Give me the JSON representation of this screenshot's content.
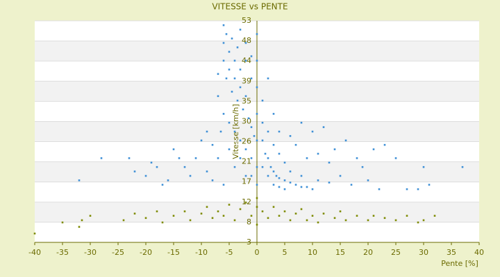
{
  "chart_data": {
    "type": "scatter",
    "title": "VITESSE vs PENTE",
    "xlabel": "Pente [%]",
    "ylabel": "Vitesse [km/h]",
    "xlim": [
      -40,
      40
    ],
    "xticks": [
      -40,
      -35,
      -30,
      -25,
      -20,
      -15,
      -10,
      -5,
      0,
      5,
      10,
      15,
      20,
      25,
      30,
      35,
      40
    ],
    "ylim": [
      3,
      53
    ],
    "yticks": [
      3,
      {
        "value": 7.545,
        "label": "8"
      },
      {
        "value": 12.09,
        "label": "12"
      },
      {
        "value": 16.64,
        "label": "17"
      },
      {
        "value": 21.18,
        "label": "21"
      },
      {
        "value": 25.73,
        "label": "26"
      },
      {
        "value": 30.27,
        "label": "30"
      },
      {
        "value": 34.82,
        "label": "35"
      },
      {
        "value": 39.36,
        "label": "39"
      },
      {
        "value": 43.91,
        "label": "44"
      },
      {
        "value": 48.45,
        "label": "48"
      },
      53
    ],
    "grid": true,
    "series": [
      {
        "color": "#3d8fd6",
        "x": [
          -6,
          -5.5,
          -5,
          -4.5,
          -4,
          -3.5,
          -3,
          -6,
          -5,
          -4,
          -3,
          -2,
          -5.5,
          -4.5,
          -3.5,
          -2.5,
          -1.5,
          -1,
          -0.5,
          0,
          0,
          0,
          0,
          0,
          -2,
          -1,
          1,
          1,
          1.5,
          2,
          2.5,
          3,
          3.5,
          4,
          5,
          6,
          7,
          8,
          9,
          10,
          1,
          2,
          3,
          4,
          5,
          -1,
          -2,
          -3,
          -4,
          -5,
          -6,
          -7,
          -6.5,
          -5,
          -3,
          -1,
          0,
          0,
          -2,
          -4,
          -7,
          -8,
          -9,
          -10,
          -11,
          -12,
          -13,
          -14,
          -15,
          -17,
          -18,
          -20,
          -19,
          -22,
          -23,
          -28,
          -32,
          -16,
          -9,
          -8,
          -6,
          1,
          2,
          3,
          4,
          5,
          6,
          7,
          8,
          9,
          10,
          11,
          12,
          13,
          14,
          15,
          16,
          17,
          18,
          19,
          20,
          22,
          21,
          23,
          25,
          27,
          29,
          30,
          31,
          37,
          -7,
          -6,
          -2,
          2,
          3,
          6,
          8,
          11,
          13,
          4,
          -1,
          -3
        ],
        "values": [
          48,
          50,
          46,
          49,
          44,
          47,
          42,
          44,
          42,
          40,
          38,
          36,
          40,
          37,
          35,
          33,
          31,
          29,
          27,
          26,
          32,
          38,
          44,
          50,
          44,
          40,
          30,
          26,
          23,
          22,
          20,
          19,
          18,
          17.5,
          17,
          16.5,
          16,
          15.5,
          15.5,
          15,
          20,
          18,
          16,
          15.5,
          15,
          22,
          24,
          26,
          28,
          30,
          32,
          36,
          28,
          24,
          22,
          18,
          16,
          20,
          18,
          20,
          22,
          25,
          28,
          26,
          22,
          18,
          20,
          22,
          24,
          16,
          20,
          18,
          21,
          19,
          22,
          22,
          17,
          17,
          19,
          17,
          16,
          35,
          28,
          25,
          23,
          21,
          27,
          25,
          30,
          22,
          28,
          23,
          29,
          21,
          24,
          18,
          26,
          16,
          22,
          20,
          17,
          15,
          24,
          25,
          22,
          15,
          15,
          20,
          16,
          20,
          41,
          52,
          48,
          40,
          32,
          19,
          18,
          17,
          16.5,
          28,
          45,
          51
        ]
      },
      {
        "color": "#7d8a00",
        "x": [
          -40,
          -35,
          -32,
          -31.5,
          -30,
          -24,
          -22,
          -20,
          -18,
          -17,
          -15,
          -13,
          -12,
          -10,
          -9,
          -8,
          -7,
          -6,
          -5,
          -4,
          -3,
          -2,
          -1,
          0,
          0,
          0,
          1,
          2,
          3,
          4,
          5,
          6,
          7,
          8,
          9,
          10,
          11,
          12,
          14,
          15,
          16,
          18,
          20,
          21,
          23,
          25,
          27,
          29,
          30,
          32
        ],
        "values": [
          5,
          7.5,
          6.5,
          8,
          9,
          8,
          9.5,
          8.5,
          10,
          7.5,
          9,
          10,
          8,
          9.5,
          11,
          8.5,
          10,
          9,
          11.5,
          8,
          10.5,
          12,
          9,
          11,
          7,
          13,
          10,
          8.5,
          11,
          9,
          10,
          8,
          9.5,
          10.5,
          8,
          9,
          7.5,
          9.5,
          8.5,
          10,
          8,
          9,
          8,
          9,
          8.5,
          8,
          9,
          7.5,
          8,
          9
        ]
      }
    ]
  }
}
